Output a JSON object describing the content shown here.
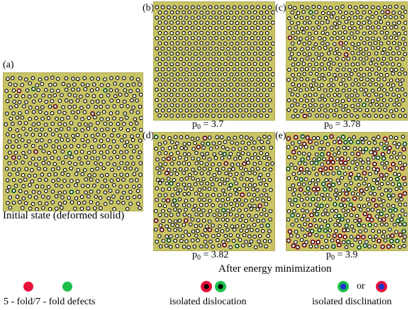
{
  "panels": {
    "a": {
      "label": "(a)",
      "caption": "Initial state (deformed solid)"
    },
    "b": {
      "label": "(b)",
      "p_symbol": "p",
      "p_sub": "0",
      "p_value": " = 3.7"
    },
    "c": {
      "label": "(c)",
      "p_symbol": "p",
      "p_sub": "0",
      "p_value": " = 3.78"
    },
    "d": {
      "label": "(d)",
      "p_symbol": "p",
      "p_sub": "0",
      "p_value": " = 3.82"
    },
    "e": {
      "label": "(e)",
      "p_symbol": "p",
      "p_sub": "0",
      "p_value": " = 3.9"
    }
  },
  "group_caption": "After energy minimization",
  "legend": {
    "defects_text": "5 - fold/7 - fold defects",
    "dislocation_text": "isolated dislocation",
    "or_text": "or",
    "disclination_text": "isolated disclination"
  },
  "colors": {
    "background_cell": "#c8c466",
    "five_fold": "#e8103a",
    "seven_fold": "#1dbf4a",
    "disclination_blue": "#1a35c8"
  }
}
